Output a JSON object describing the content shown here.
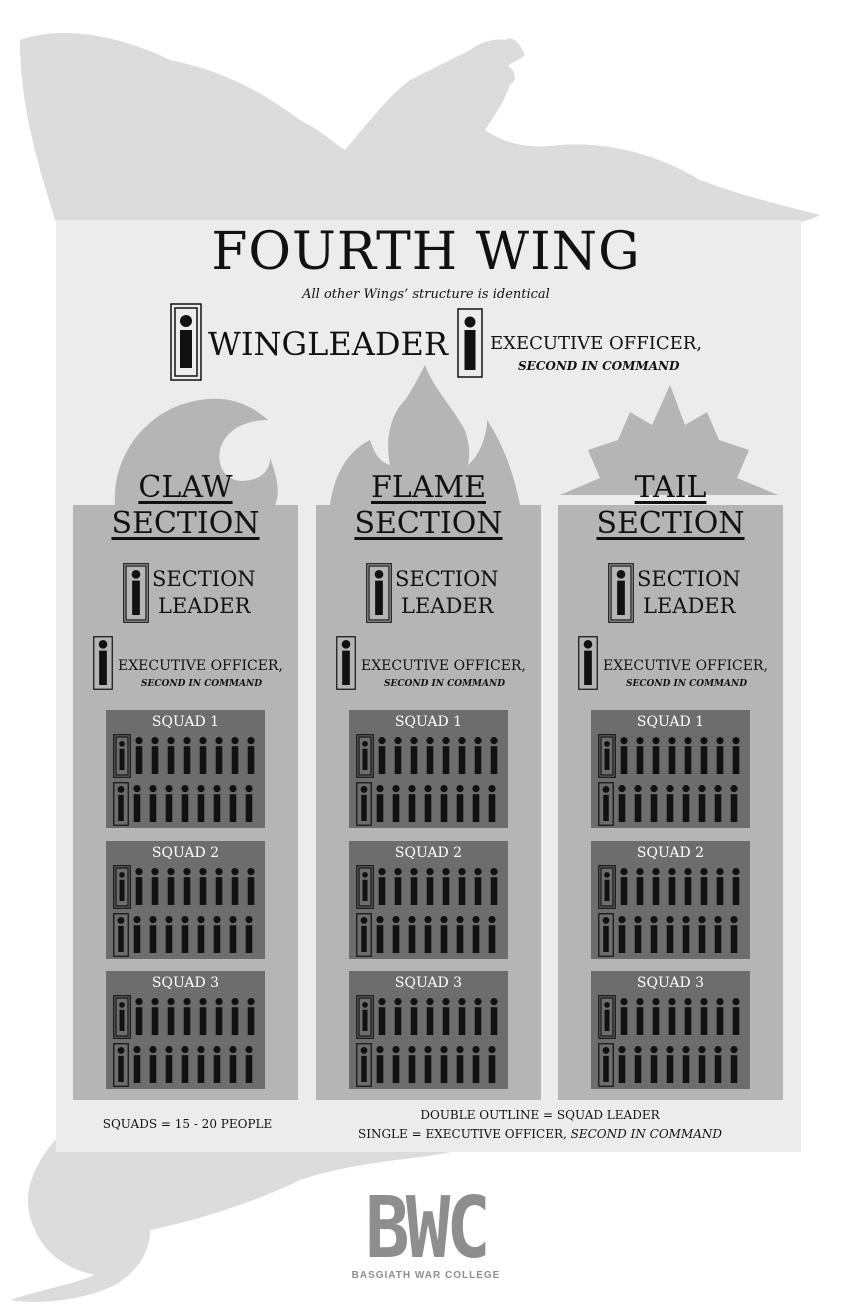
{
  "title": "FOURTH WING",
  "subtitle": "All other Wings’ structure is identical",
  "wingleader": {
    "label": "WINGLEADER"
  },
  "wing_executive": {
    "label": "EXECUTIVE OFFICER,",
    "sub": "SECOND IN COMMAND"
  },
  "sections": [
    {
      "title_line1": "CLAW",
      "title_line2": "SECTION",
      "leader_line1": "SECTION",
      "leader_line2": "LEADER",
      "exec_label": "EXECUTIVE OFFICER,",
      "exec_sub": "SECOND IN COMMAND",
      "squads": [
        {
          "label": "SQUAD 1"
        },
        {
          "label": "SQUAD 2"
        },
        {
          "label": "SQUAD 3"
        }
      ]
    },
    {
      "title_line1": "FLAME",
      "title_line2": "SECTION",
      "leader_line1": "SECTION",
      "leader_line2": "LEADER",
      "exec_label": "EXECUTIVE OFFICER,",
      "exec_sub": "SECOND IN COMMAND",
      "squads": [
        {
          "label": "SQUAD 1"
        },
        {
          "label": "SQUAD 2"
        },
        {
          "label": "SQUAD 3"
        }
      ]
    },
    {
      "title_line1": "TAIL",
      "title_line2": "SECTION",
      "leader_line1": "SECTION",
      "leader_line2": "LEADER",
      "exec_label": "EXECUTIVE OFFICER,",
      "exec_sub": "SECOND IN COMMAND",
      "squads": [
        {
          "label": "SQUAD 1"
        },
        {
          "label": "SQUAD 2"
        },
        {
          "label": "SQUAD 3"
        }
      ]
    }
  ],
  "notes": {
    "squad_size": "SQUADS = 15 - 20 PEOPLE",
    "legend_line1": "DOUBLE OUTLINE = SQUAD LEADER",
    "legend_line2_a": "SINGLE = EXECUTIVE OFFICER,",
    "legend_line2_b": "SECOND IN COMMAND"
  },
  "logo": {
    "mark": "BWC",
    "name": "BASGIATH WAR COLLEGE"
  },
  "colors": {
    "panel": "#ececec",
    "section": "#b5b5b5",
    "squad": "#6d6d6d",
    "dragon": "#dcdcdc",
    "logo": "#8e8e8e"
  },
  "icons": {
    "person": "person-icon",
    "leader_frame": "double-outline-frame",
    "exec_frame": "single-outline-frame"
  }
}
